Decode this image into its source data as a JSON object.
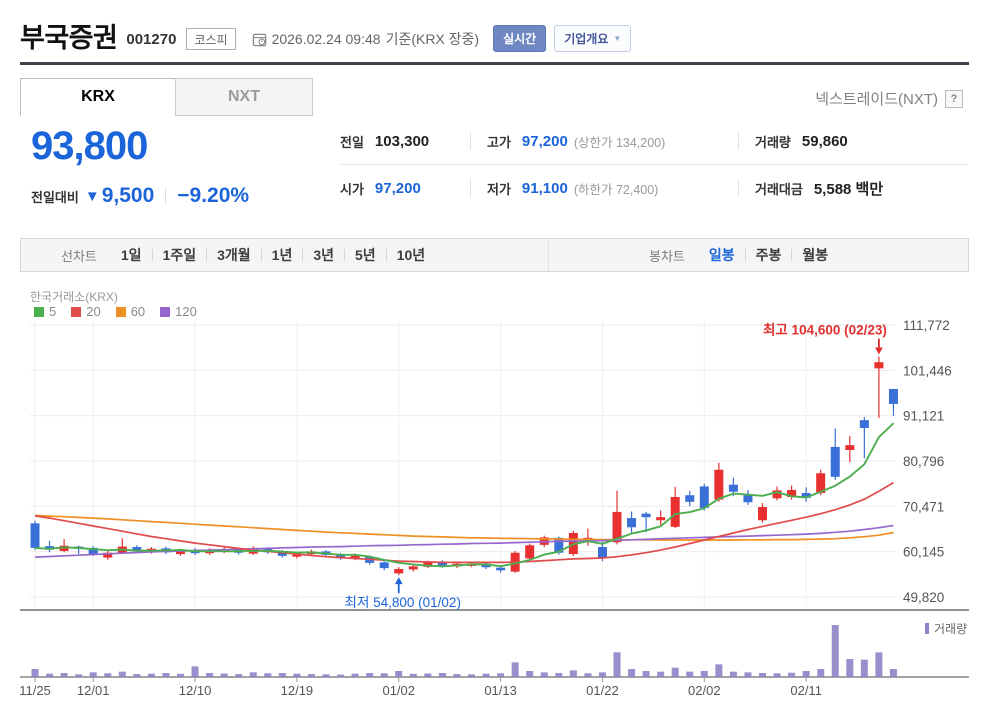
{
  "header": {
    "title": "부국증권",
    "stock_code": "001270",
    "market_badge": "코스피",
    "datetime": "2026.02.24 09:48",
    "date_suffix": "기준(KRX 장중)",
    "realtime_button": "실시간",
    "overview_button": "기업개요"
  },
  "tabs": {
    "krx": "KRX",
    "nxt": "NXT",
    "nxt_link": "넥스트레이드(NXT)",
    "help_button": "?"
  },
  "price_info": {
    "current_price": "93,800",
    "change_label": "전일대비",
    "change_direction": "down",
    "change_value": "9,500",
    "change_percent": "−9.20%",
    "down_color": "#1b64da"
  },
  "summary_table": {
    "rows": [
      [
        {
          "label": "전일",
          "value": "103,300"
        },
        {
          "label": "고가",
          "value": "97,200",
          "extra": "(상한가 134,200)"
        },
        {
          "label": "거래량",
          "value": "59,860"
        }
      ],
      [
        {
          "label": "시가",
          "value": "97,200"
        },
        {
          "label": "저가",
          "value": "91,100",
          "extra": "(하한가 72,400)"
        },
        {
          "label": "거래대금",
          "value": "5,588 백만"
        }
      ]
    ]
  },
  "chart_toolbar": {
    "line_chart_label": "선차트",
    "line_chart_items": [
      "1일",
      "1주일",
      "3개월",
      "1년",
      "3년",
      "5년",
      "10년"
    ],
    "candle_chart_label": "봉차트",
    "candle_chart_items": [
      "일봉",
      "주봉",
      "월봉"
    ],
    "selected_item": "일봉"
  },
  "chart_data": {
    "type": "candlestick+volume",
    "exchange_label": "한국거래소(KRX)",
    "ma_legend": [
      {
        "name": "5",
        "color": "#4bae4f"
      },
      {
        "name": "20",
        "color": "#e14b4b"
      },
      {
        "name": "60",
        "color": "#ef9025"
      },
      {
        "name": "120",
        "color": "#9668cf"
      }
    ],
    "volume_legend": "거래량",
    "up_color": "#e83030",
    "down_color": "#3a6fd8",
    "volume_color": "#8f83c7",
    "grid_color": "#ebebeb",
    "axis_text_color": "#555555",
    "y_axis": {
      "values": [
        111772,
        101446,
        91121,
        80796,
        70471,
        60145,
        49820
      ],
      "labels": [
        "111,772",
        "101,446",
        "91,121",
        "80,796",
        "70,471",
        "60,145",
        "49,820"
      ]
    },
    "x_ticks": [
      {
        "index": 0,
        "label": "11/25"
      },
      {
        "index": 4,
        "label": "12/01"
      },
      {
        "index": 11,
        "label": "12/10"
      },
      {
        "index": 18,
        "label": "12/19"
      },
      {
        "index": 25,
        "label": "01/02"
      },
      {
        "index": 32,
        "label": "01/13"
      },
      {
        "index": 39,
        "label": "01/22"
      },
      {
        "index": 46,
        "label": "02/02"
      },
      {
        "index": 53,
        "label": "02/11"
      }
    ],
    "annotations": {
      "high": {
        "index": 58,
        "price": 104600,
        "label": "최고 104,600 (02/23)",
        "color": "#e12f2f"
      },
      "low": {
        "index": 25,
        "price": 54800,
        "label": "최저 54,800 (01/02)",
        "color": "#1b64da"
      }
    },
    "candles": [
      [
        66600,
        67200,
        60500,
        61000
      ],
      [
        61400,
        62600,
        60000,
        60600
      ],
      [
        60300,
        63000,
        60000,
        61500
      ],
      [
        61300,
        61500,
        59600,
        60800
      ],
      [
        61000,
        61400,
        59200,
        59600
      ],
      [
        58800,
        60300,
        58300,
        59900
      ],
      [
        59900,
        63200,
        59600,
        61300
      ],
      [
        61200,
        61600,
        59800,
        60200
      ],
      [
        60000,
        61200,
        59700,
        60800
      ],
      [
        60900,
        61300,
        59600,
        60000
      ],
      [
        59600,
        60800,
        59200,
        60400
      ],
      [
        60500,
        61000,
        59400,
        59800
      ],
      [
        59800,
        60900,
        59400,
        60300
      ],
      [
        60100,
        61100,
        59800,
        60700
      ],
      [
        60700,
        61000,
        59500,
        59900
      ],
      [
        59700,
        61400,
        59400,
        60900
      ],
      [
        60800,
        61200,
        59600,
        60000
      ],
      [
        60200,
        60500,
        58800,
        59200
      ],
      [
        59000,
        60100,
        58600,
        59700
      ],
      [
        59600,
        60600,
        59200,
        60200
      ],
      [
        60200,
        60500,
        59000,
        59400
      ],
      [
        59300,
        59800,
        58300,
        58700
      ],
      [
        58600,
        59700,
        58200,
        59200
      ],
      [
        59000,
        59200,
        57200,
        57600
      ],
      [
        57700,
        58000,
        55900,
        56400
      ],
      [
        55200,
        56600,
        54800,
        56200
      ],
      [
        56100,
        57200,
        55600,
        56800
      ],
      [
        56700,
        58100,
        56400,
        57800
      ],
      [
        57900,
        58200,
        56500,
        56900
      ],
      [
        56800,
        57800,
        56400,
        57400
      ],
      [
        56900,
        57900,
        56600,
        57400
      ],
      [
        57400,
        57700,
        56200,
        56600
      ],
      [
        56500,
        56900,
        55400,
        55900
      ],
      [
        55600,
        60300,
        55300,
        59900
      ],
      [
        58600,
        62000,
        58200,
        61600
      ],
      [
        61700,
        63800,
        61200,
        63400
      ],
      [
        63300,
        63600,
        59500,
        59900
      ],
      [
        59600,
        64900,
        59200,
        64400
      ],
      [
        62400,
        65400,
        61500,
        63300
      ],
      [
        61200,
        62400,
        58000,
        58700
      ],
      [
        62300,
        74000,
        61800,
        69200
      ],
      [
        67800,
        69300,
        64400,
        65700
      ],
      [
        68800,
        69200,
        64600,
        68000
      ],
      [
        67300,
        69500,
        65800,
        68000
      ],
      [
        65800,
        74900,
        65500,
        72600
      ],
      [
        73000,
        74000,
        70500,
        71500
      ],
      [
        75000,
        75600,
        69500,
        70100
      ],
      [
        72000,
        80400,
        71500,
        78800
      ],
      [
        75400,
        77000,
        72800,
        73800
      ],
      [
        73000,
        74200,
        70800,
        71400
      ],
      [
        67300,
        71200,
        66800,
        70300
      ],
      [
        72300,
        75000,
        71800,
        74100
      ],
      [
        72600,
        75200,
        72000,
        74200
      ],
      [
        73500,
        74800,
        71500,
        72400
      ],
      [
        73500,
        78800,
        73000,
        78000
      ],
      [
        84000,
        88200,
        76500,
        77200
      ],
      [
        83300,
        86500,
        80500,
        84400
      ],
      [
        90100,
        90800,
        81400,
        88300
      ],
      [
        101900,
        104600,
        90600,
        103300
      ],
      [
        97200,
        97200,
        91100,
        93800
      ]
    ],
    "volumes": [
      60000,
      25000,
      30000,
      20000,
      35000,
      28000,
      40000,
      22000,
      25000,
      30000,
      24000,
      80000,
      30000,
      26000,
      22000,
      35000,
      28000,
      30000,
      25000,
      22000,
      20000,
      18000,
      25000,
      30000,
      28000,
      45000,
      24000,
      26000,
      30000,
      22000,
      20000,
      25000,
      28000,
      110000,
      45000,
      35000,
      30000,
      50000,
      28000,
      35000,
      185000,
      60000,
      45000,
      40000,
      70000,
      40000,
      45000,
      95000,
      40000,
      35000,
      30000,
      28000,
      32000,
      45000,
      60000,
      390000,
      135000,
      130000,
      185000,
      59860
    ],
    "ma5": [
      61000,
      60800,
      61130,
      60980,
      60700,
      60480,
      60620,
      60360,
      60360,
      60440,
      60540,
      60240,
      60260,
      60240,
      60220,
      60320,
      60360,
      60140,
      59940,
      60000,
      59700,
      59440,
      59440,
      59020,
      58260,
      57620,
      57240,
      56960,
      56820,
      57020,
      57260,
      57220,
      56840,
      57440,
      58280,
      59480,
      60140,
      61840,
      62520,
      61940,
      63100,
      64260,
      64980,
      65920,
      68700,
      69160,
      70040,
      72200,
      73360,
      73120,
      72880,
      73680,
      72760,
      72480,
      73800,
      75180,
      77240,
      80060,
      86240,
      89400
    ],
    "ma20": [
      68300,
      67800,
      67200,
      66600,
      66000,
      65400,
      64800,
      64200,
      63600,
      63100,
      62600,
      62100,
      61700,
      61300,
      60900,
      60500,
      60200,
      59900,
      59600,
      59300,
      59000,
      58800,
      58600,
      58400,
      58200,
      58000,
      57900,
      57800,
      57700,
      57700,
      57700,
      57700,
      57700,
      57800,
      57900,
      58100,
      58300,
      58500,
      58600,
      58700,
      59000,
      59400,
      59900,
      60500,
      61200,
      62000,
      62800,
      63600,
      64400,
      65200,
      65900,
      66600,
      67300,
      68000,
      68800,
      69700,
      70800,
      72100,
      73900,
      75900
    ],
    "ma60": [
      68400,
      68250,
      68100,
      67950,
      67800,
      67600,
      67400,
      67200,
      67000,
      66800,
      66600,
      66400,
      66200,
      66000,
      65800,
      65600,
      65400,
      65200,
      65000,
      64800,
      64600,
      64450,
      64300,
      64150,
      64000,
      63850,
      63700,
      63600,
      63500,
      63400,
      63300,
      63250,
      63200,
      63150,
      63100,
      63050,
      63000,
      62950,
      62950,
      62900,
      62900,
      62850,
      62850,
      62800,
      62800,
      62800,
      62800,
      62800,
      62800,
      62850,
      62850,
      62900,
      62900,
      62950,
      63000,
      63100,
      63300,
      63550,
      63900,
      64500
    ],
    "ma120": [
      58900,
      59050,
      59200,
      59350,
      59500,
      59650,
      59800,
      59950,
      60100,
      60200,
      60300,
      60400,
      60500,
      60600,
      60700,
      60800,
      60900,
      61000,
      61100,
      61200,
      61250,
      61300,
      61400,
      61500,
      61550,
      61600,
      61700,
      61750,
      61850,
      61900,
      62000,
      62050,
      62100,
      62200,
      62300,
      62400,
      62500,
      62550,
      62600,
      62650,
      62750,
      62850,
      62950,
      63100,
      63200,
      63300,
      63400,
      63500,
      63600,
      63700,
      63800,
      63900,
      64000,
      64150,
      64300,
      64550,
      64800,
      65200,
      65600,
      66100
    ]
  }
}
